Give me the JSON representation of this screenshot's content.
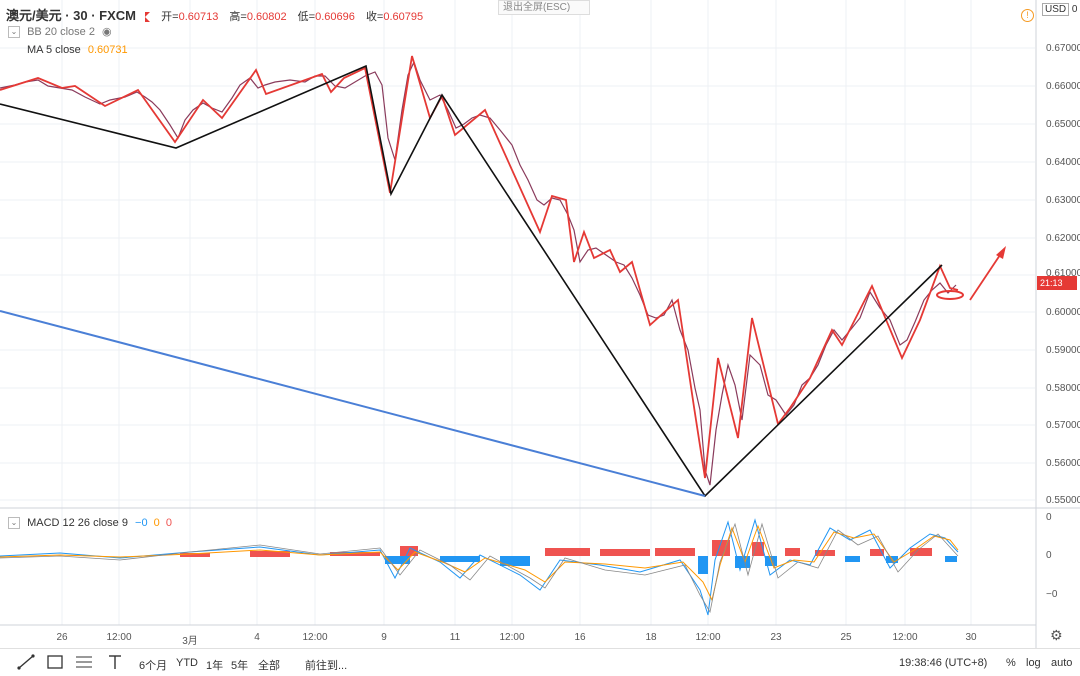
{
  "legend": {
    "symbol": "澳元/美元 · 30 · FXCM",
    "open_label": "开=",
    "open": "0.60713",
    "high_label": "高=",
    "high": "0.60802",
    "low_label": "低=",
    "low": "0.60696",
    "close_label": "收=",
    "close": "0.60795",
    "bb": "BB 20 close 2",
    "ma": "MA 5 close",
    "ma_value": "0.60731",
    "macd": "MACD 12 26 close 9",
    "macd_values": [
      "−0",
      "0",
      "0"
    ]
  },
  "exit_fullscreen": "退出全屏(ESC)",
  "currency": "USD",
  "currency_suffix": "0",
  "current_price_tag": "21:13",
  "price_axis": [
    "0.67000",
    "0.66000",
    "0.65000",
    "0.64000",
    "0.63000",
    "0.62000",
    "0.61000",
    "0.60000",
    "0.59000",
    "0.58000",
    "0.57000",
    "0.56000",
    "0.55000"
  ],
  "macd_axis": [
    "0",
    "0",
    "−0"
  ],
  "time_axis": [
    "26",
    "12:00",
    "3月",
    "4",
    "12:00",
    "9",
    "11",
    "12:00",
    "16",
    "18",
    "12:00",
    "23",
    "25",
    "12:00",
    "30"
  ],
  "bottom_bar": {
    "ranges": [
      "6个月",
      "YTD",
      "1年",
      "5年",
      "全部"
    ],
    "goto": "前往到...",
    "clock": "19:38:46 (UTC+8)",
    "percent": "%",
    "log": "log",
    "auto": "auto"
  },
  "colors": {
    "up": "#e53935",
    "zigzag_black": "#111111",
    "trend_blue": "#4a7fd6",
    "macd_pos": "#ef5350",
    "macd_neg": "#2196f3"
  }
}
